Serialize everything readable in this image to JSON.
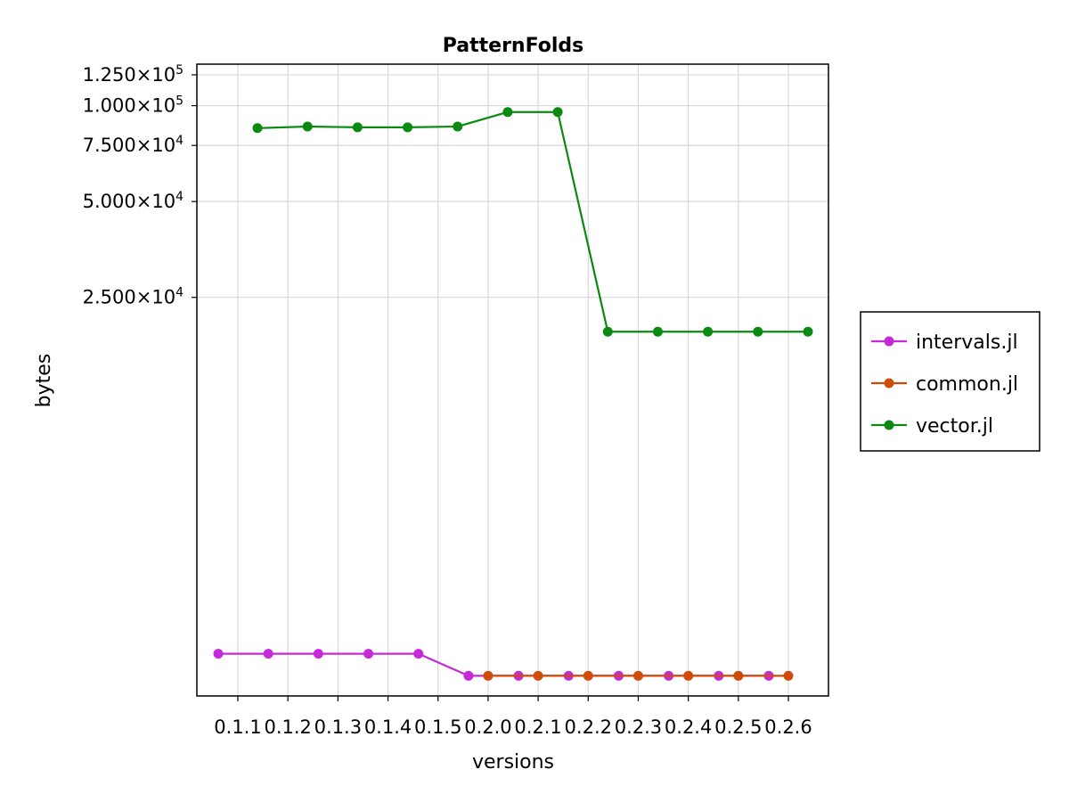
{
  "chart_data": {
    "type": "line",
    "title": "PatternFolds",
    "xlabel": "versions",
    "ylabel": "bytes",
    "y_scale": "log10",
    "ylim": [
      1400,
      135000
    ],
    "grid": true,
    "legend_position": "right-outside",
    "categories": [
      "0.1.1",
      "0.1.2",
      "0.1.3",
      "0.1.4",
      "0.1.5",
      "0.2.0",
      "0.2.1",
      "0.2.2",
      "0.2.3",
      "0.2.4",
      "0.2.5",
      "0.2.6"
    ],
    "y_ticks": [
      {
        "value": 25000,
        "mantissa": "2.500×10",
        "exp": "4"
      },
      {
        "value": 50000,
        "mantissa": "5.000×10",
        "exp": "4"
      },
      {
        "value": 75000,
        "mantissa": "7.500×10",
        "exp": "4"
      },
      {
        "value": 100000,
        "mantissa": "1.000×10",
        "exp": "5"
      },
      {
        "value": 125000,
        "mantissa": "1.250×10",
        "exp": "5"
      }
    ],
    "series": [
      {
        "name": "intervals.jl",
        "color": "#c52ad8",
        "values": [
          1900,
          1900,
          1900,
          1900,
          1900,
          1620,
          1620,
          1620,
          1620,
          1620,
          1620,
          1620
        ]
      },
      {
        "name": "common.jl",
        "color": "#d04a0a",
        "values": [
          null,
          null,
          null,
          null,
          null,
          1620,
          1620,
          1620,
          1620,
          1620,
          1620,
          1620
        ]
      },
      {
        "name": "vector.jl",
        "color": "#0a8a10",
        "values": [
          85000,
          86000,
          85500,
          85500,
          86000,
          95500,
          95500,
          19500,
          19500,
          19500,
          19500,
          19500
        ]
      }
    ]
  }
}
